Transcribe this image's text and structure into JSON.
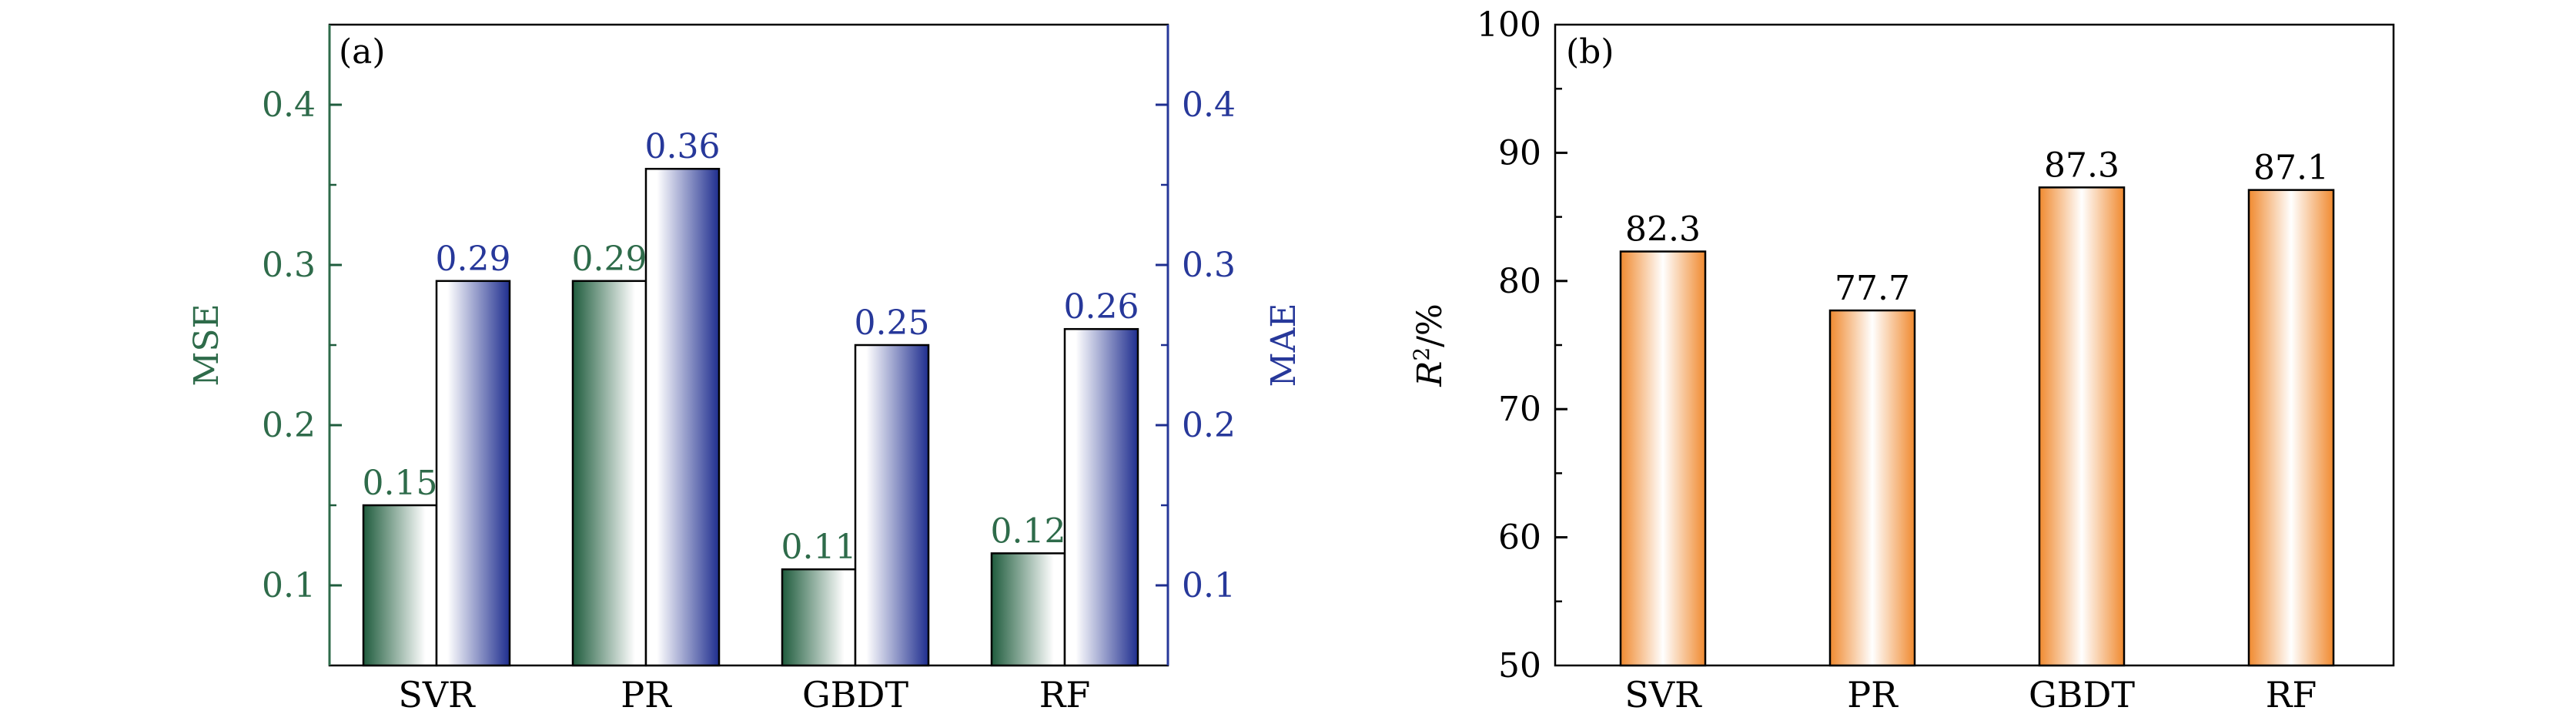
{
  "chart_data": [
    {
      "panel_label": "(a)",
      "type": "bar",
      "categories": [
        "SVR",
        "PR",
        "GBDT",
        "RF"
      ],
      "series": [
        {
          "name": "MSE",
          "axis": "left",
          "values": [
            0.15,
            0.29,
            0.11,
            0.12
          ],
          "labels": [
            "0.15",
            "0.29",
            "0.11",
            "0.12"
          ]
        },
        {
          "name": "MAE",
          "axis": "right",
          "values": [
            0.29,
            0.36,
            0.25,
            0.26
          ],
          "labels": [
            "0.29",
            "0.36",
            "0.25",
            "0.26"
          ]
        }
      ],
      "ylabel": "MSE",
      "ylabel_right": "MAE",
      "ylim": [
        0.05,
        0.45
      ],
      "ylim_right": [
        0.05,
        0.45
      ],
      "yticks": [
        0.1,
        0.2,
        0.3,
        0.4
      ],
      "ytick_labels": [
        "0.1",
        "0.2",
        "0.3",
        "0.4"
      ],
      "colors": {
        "mse": "#1f5c3d",
        "mae": "#1f2e8f",
        "mse_text": "#2e6b4a",
        "mae_text": "#27389a"
      },
      "grid": false
    },
    {
      "panel_label": "(b)",
      "type": "bar",
      "categories": [
        "SVR",
        "PR",
        "GBDT",
        "RF"
      ],
      "series": [
        {
          "values": [
            82.3,
            77.7,
            87.3,
            87.1
          ],
          "labels": [
            "82.3",
            "77.7",
            "87.3",
            "87.1"
          ]
        }
      ],
      "ylabel_main": "R",
      "ylabel_sup": "2",
      "ylabel_suffix": "/%",
      "ylim": [
        50,
        100
      ],
      "yticks": [
        50,
        60,
        70,
        80,
        90,
        100
      ],
      "ytick_labels": [
        "50",
        "60",
        "70",
        "80",
        "90",
        "100"
      ],
      "colors": {
        "bar": "#f08a30",
        "text": "#000000"
      },
      "grid": false
    }
  ]
}
